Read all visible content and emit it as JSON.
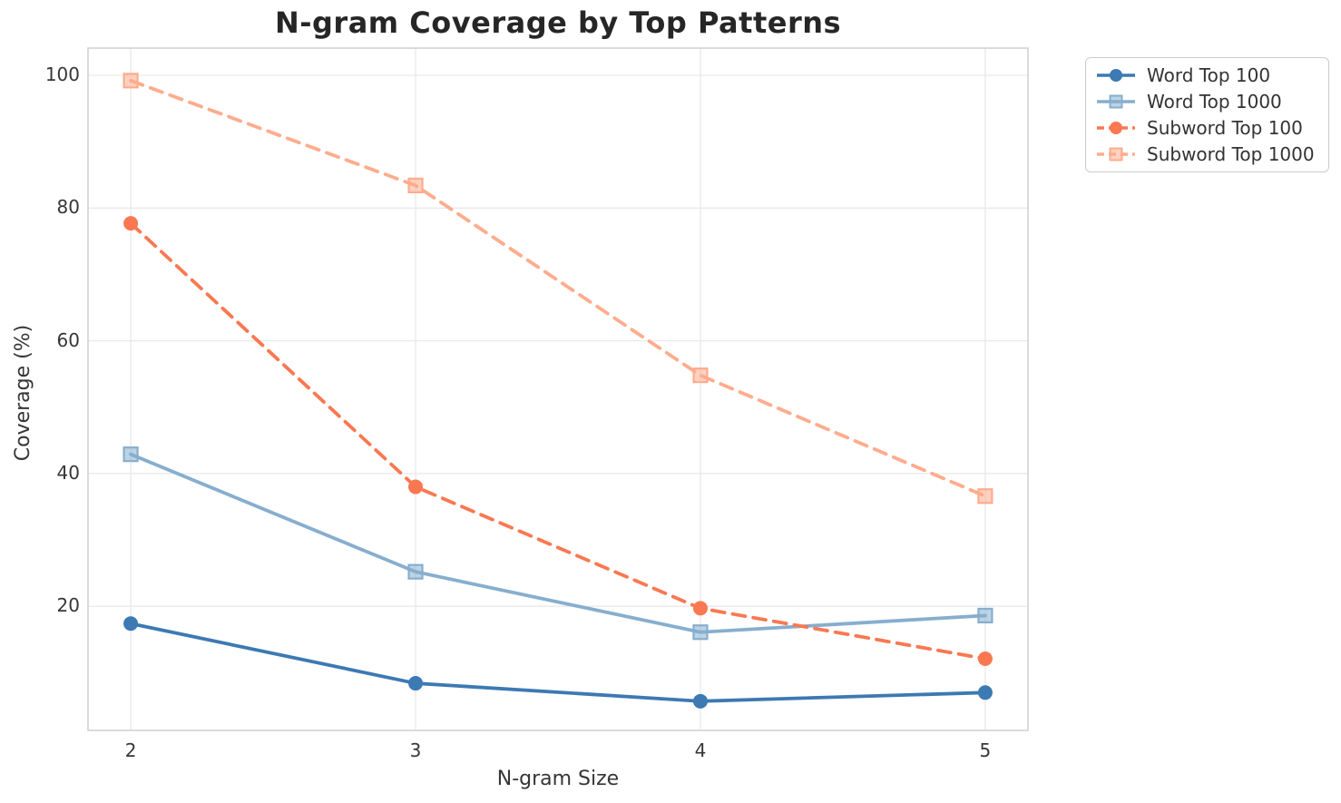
{
  "chart_data": {
    "type": "line",
    "title": "N-gram Coverage by Top Patterns",
    "xlabel": "N-gram Size",
    "ylabel": "Coverage (%)",
    "x": [
      2,
      3,
      4,
      5
    ],
    "xtick_labels": [
      "2",
      "3",
      "4",
      "5"
    ],
    "ytick_values": [
      20,
      40,
      60,
      80,
      100
    ],
    "ytick_labels": [
      "20",
      "40",
      "60",
      "80",
      "100"
    ],
    "xlim": [
      1.85,
      5.15
    ],
    "ylim": [
      1.3,
      104.1
    ],
    "grid": true,
    "legend_position": "outside-upper-right",
    "series": [
      {
        "name": "Word Top 100",
        "marker": "circle",
        "line_style": "solid",
        "color": "#3D79B3",
        "values": [
          17.4,
          8.4,
          5.7,
          7.0
        ]
      },
      {
        "name": "Word Top 1000",
        "marker": "square",
        "line_style": "solid",
        "color": "#87AECE",
        "values": [
          42.9,
          25.2,
          16.1,
          18.6
        ]
      },
      {
        "name": "Subword Top 100",
        "marker": "circle",
        "line_style": "dashed",
        "color": "#FA7851",
        "values": [
          77.7,
          38.0,
          19.7,
          12.1
        ]
      },
      {
        "name": "Subword Top 1000",
        "marker": "square",
        "line_style": "dashed",
        "color": "#FFAC8D",
        "values": [
          99.2,
          83.4,
          54.8,
          36.6
        ]
      }
    ],
    "colors": {
      "grid": "#E9E9E9",
      "axes_border": "#CFCFCF",
      "title_text": "#262626",
      "tick_text": "#363636",
      "legend_border": "#CCCCCC"
    }
  }
}
